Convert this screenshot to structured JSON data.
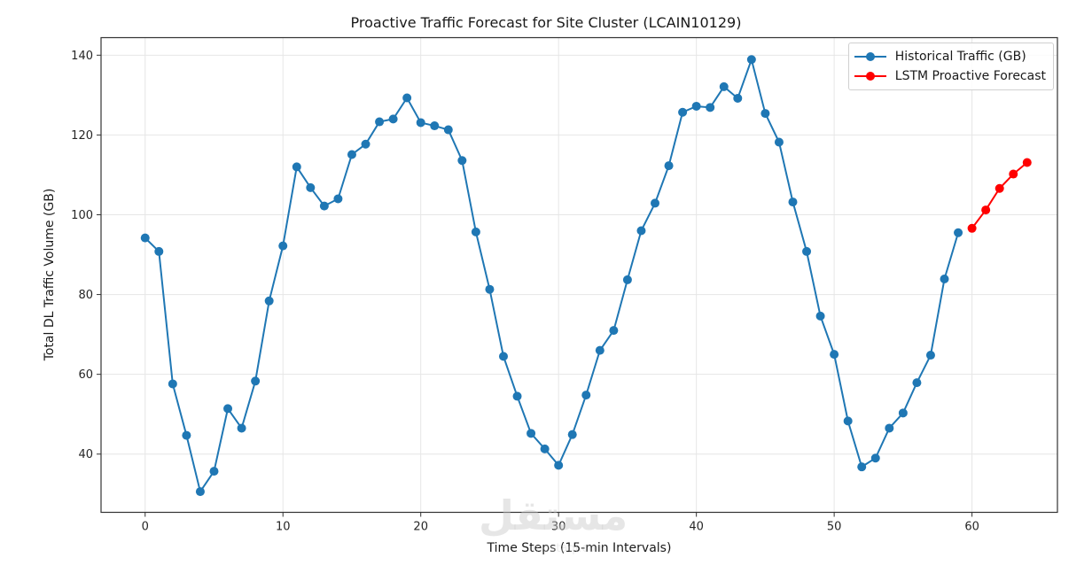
{
  "chart_data": {
    "type": "line",
    "title": "Proactive Traffic Forecast for Site Cluster (LCAIN10129)",
    "xlabel": "Time Steps (15-min Intervals)",
    "ylabel": "Total DL Traffic Volume (GB)",
    "xlim": [
      -3.2,
      66.2
    ],
    "ylim": [
      25.4,
      144.4
    ],
    "xticks": [
      0,
      10,
      20,
      30,
      40,
      50,
      60
    ],
    "yticks": [
      40,
      60,
      80,
      100,
      120,
      140
    ],
    "grid": true,
    "legend_position": "upper right",
    "series": [
      {
        "name": "Historical Traffic (GB)",
        "color": "#1f77b4",
        "marker": "circle",
        "x": [
          0,
          1,
          2,
          3,
          4,
          5,
          6,
          7,
          8,
          9,
          10,
          11,
          12,
          13,
          14,
          15,
          16,
          17,
          18,
          19,
          20,
          21,
          22,
          23,
          24,
          25,
          26,
          27,
          28,
          29,
          30,
          31,
          32,
          33,
          34,
          35,
          36,
          37,
          38,
          39,
          40,
          41,
          42,
          43,
          44,
          45,
          46,
          47,
          48,
          49,
          50,
          51,
          52,
          53,
          54,
          55,
          56,
          57,
          58,
          59
        ],
        "values": [
          94.2,
          90.8,
          57.6,
          44.7,
          30.6,
          35.7,
          51.4,
          46.5,
          58.3,
          78.4,
          92.2,
          112.0,
          106.8,
          102.2,
          104.0,
          115.1,
          117.7,
          123.3,
          124.0,
          129.3,
          123.1,
          122.3,
          121.3,
          113.6,
          95.7,
          81.3,
          64.5,
          54.5,
          45.2,
          41.3,
          37.2,
          44.9,
          54.8,
          66.0,
          71.0,
          83.7,
          96.0,
          102.9,
          112.3,
          125.7,
          127.2,
          126.9,
          132.1,
          129.2,
          138.9,
          125.4,
          118.2,
          103.2,
          90.8,
          74.6,
          65.0,
          48.3,
          36.8,
          39.0,
          46.5,
          50.3,
          57.9,
          64.8,
          83.9,
          95.5
        ]
      },
      {
        "name": "LSTM Proactive Forecast",
        "color": "#ff0000",
        "marker": "circle",
        "x": [
          60,
          61,
          62,
          63,
          64
        ],
        "values": [
          96.6,
          101.2,
          106.6,
          110.2,
          113.1
        ]
      }
    ]
  },
  "watermark": {
    "text": "مستقل",
    "sub": "mostaql.com"
  }
}
